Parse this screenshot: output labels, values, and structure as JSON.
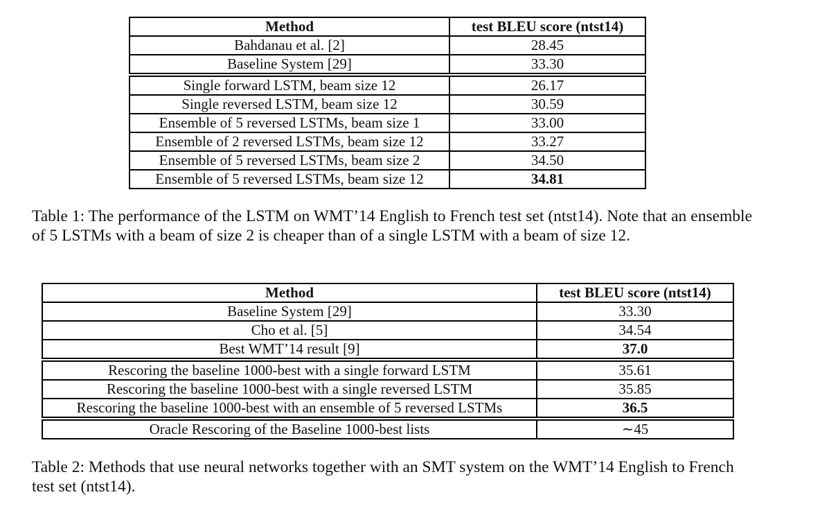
{
  "table1": {
    "headers": [
      "Method",
      "test BLEU score (ntst14)"
    ],
    "rows": [
      [
        "Bahdanau et al. [2]",
        "28.45"
      ],
      [
        "Baseline System [29]",
        "33.30"
      ],
      [
        "Single forward LSTM, beam size 12",
        "26.17"
      ],
      [
        "Single reversed LSTM, beam size 12",
        "30.59"
      ],
      [
        "Ensemble of 5 reversed LSTMs, beam size 1",
        "33.00"
      ],
      [
        "Ensemble of 2 reversed LSTMs, beam size 12",
        "33.27"
      ],
      [
        "Ensemble of 5 reversed LSTMs, beam size 2",
        "34.50"
      ],
      [
        "Ensemble of 5 reversed LSTMs, beam size 12",
        "34.81"
      ]
    ],
    "caption_label": "Table 1:",
    "caption_text": "The performance of the LSTM on WMT’14 English to French test set (ntst14). Note that an ensemble of 5 LSTMs with a beam of size 2 is cheaper than of a single LSTM with a beam of size 12."
  },
  "table2": {
    "headers": [
      "Method",
      "test BLEU score (ntst14)"
    ],
    "rows": [
      [
        "Baseline System [29]",
        "33.30"
      ],
      [
        "Cho et al. [5]",
        "34.54"
      ],
      [
        "Best WMT’14 result [9]",
        "37.0"
      ],
      [
        "Rescoring the baseline 1000-best with a single forward LSTM",
        "35.61"
      ],
      [
        "Rescoring the baseline 1000-best with a single reversed LSTM",
        "35.85"
      ],
      [
        "Rescoring the baseline 1000-best with an ensemble of 5 reversed LSTMs",
        "36.5"
      ],
      [
        "Oracle Rescoring of the Baseline 1000-best lists",
        "∼45"
      ]
    ],
    "caption_label": "Table 2:",
    "caption_text": "Methods that use neural networks together with an SMT system on the WMT’14 English to French test set (ntst14)."
  }
}
